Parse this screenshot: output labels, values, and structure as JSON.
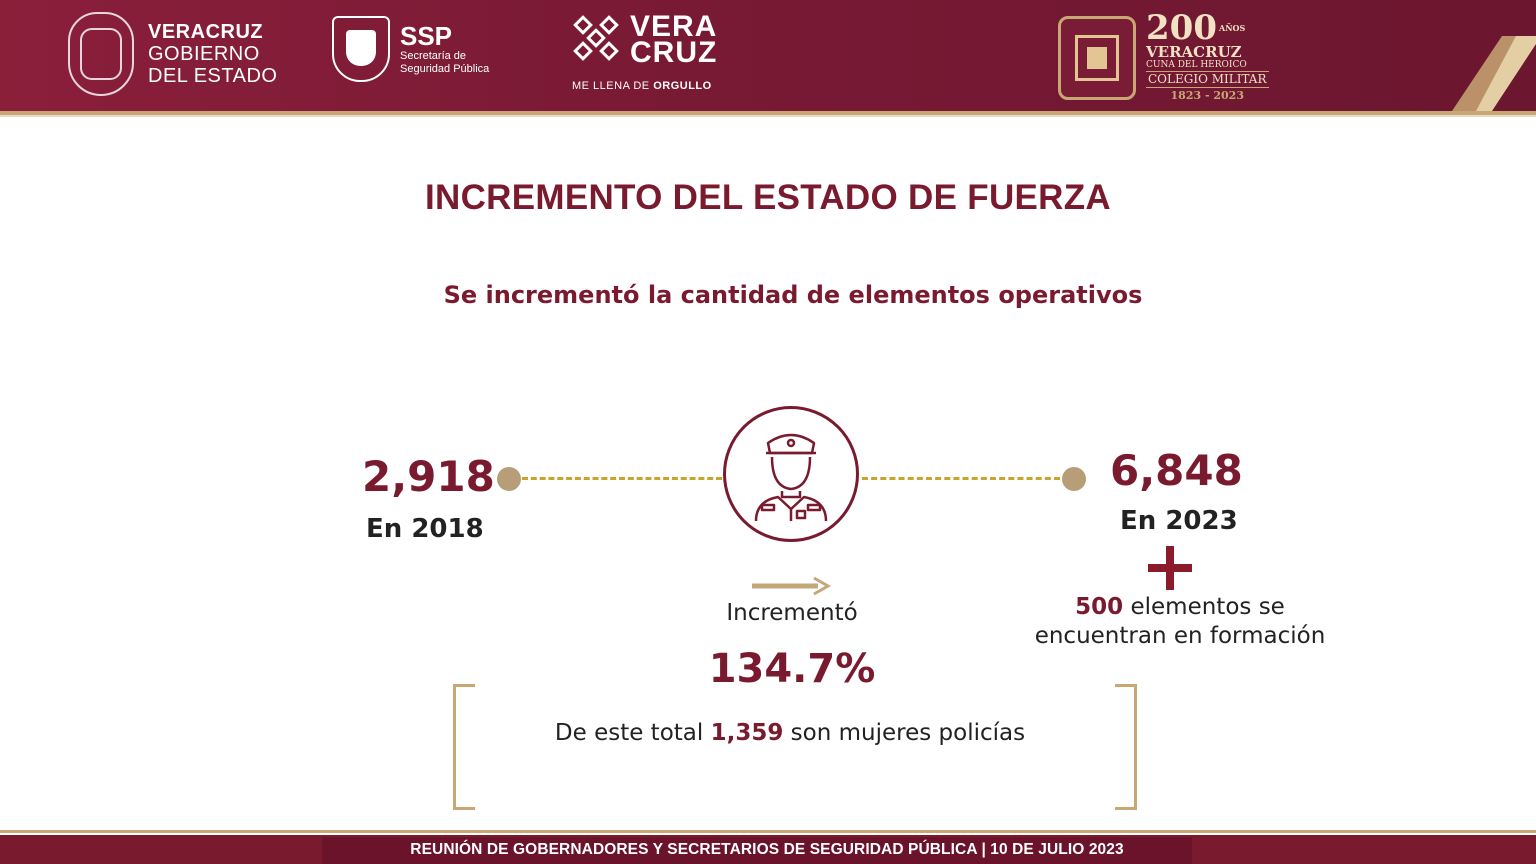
{
  "header": {
    "gov": {
      "line1": "VERACRUZ",
      "line2": "GOBIERNO",
      "line3": "DEL ESTADO"
    },
    "ssp": {
      "acronym": "SSP",
      "line1": "Secretaría de",
      "line2": "Seguridad Pública"
    },
    "veracruz": {
      "line1": "VERA",
      "line2": "CRUZ",
      "tagline_prefix": "ME LLENA DE ",
      "tagline_bold": "ORGULLO"
    },
    "bicentennial": {
      "number": "200",
      "years_word": "AÑOS",
      "state": "VERACRUZ",
      "cuna": "CUNA DEL HEROICO",
      "college": "COLEGIO MILITAR",
      "years": "1823 - 2023"
    },
    "colors": {
      "primary": "#7a1a2e",
      "gold": "#c9a774"
    }
  },
  "slide": {
    "title": "INCREMENTO DEL ESTADO DE FUERZA",
    "subtitle": "Se incrementó la cantidad de elementos operativos"
  },
  "stats": {
    "start": {
      "value": "2,918",
      "label": "En 2018"
    },
    "end": {
      "value": "6,848",
      "label": "En 2023"
    },
    "increase": {
      "label": "Incrementó",
      "value": "134.7%"
    },
    "training": {
      "count": "500",
      "text_a": " elementos  se",
      "text_b": "encuentran en formación"
    },
    "women": {
      "prefix": "De este total ",
      "count": "1,359",
      "suffix": " son mujeres policías"
    },
    "icon": "police-officer-icon"
  },
  "footer": {
    "text": "REUNIÓN DE GOBERNADORES Y SECRETARIOS DE SEGURIDAD PÚBLICA | 10 DE JULIO 2023"
  }
}
